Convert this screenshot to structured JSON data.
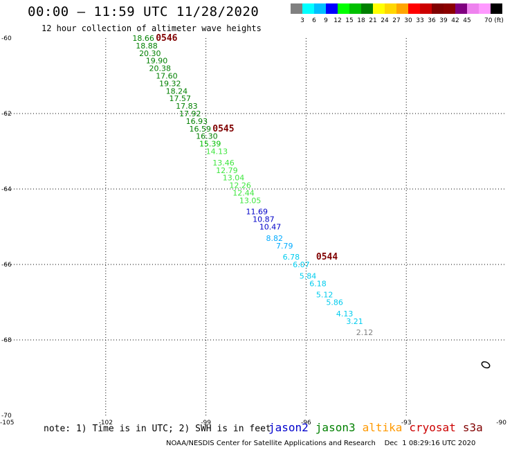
{
  "title": "00:00 – 11:59 UTC 11/28/2020",
  "subtitle": "12 hour collection of altimeter wave heights",
  "colorbar": {
    "colors": [
      "#808080",
      "#00ffff",
      "#00bfff",
      "#0000ff",
      "#00ff00",
      "#00c000",
      "#008000",
      "#ffff00",
      "#ffd700",
      "#ffa500",
      "#ff0000",
      "#cc0000",
      "#800000",
      "#8b0000",
      "#800080",
      "#ee82ee",
      "#ff99ff",
      "#000000"
    ],
    "labels": [
      "3",
      "6",
      "9",
      "12",
      "15",
      "18",
      "21",
      "24",
      "27",
      "30",
      "33",
      "36",
      "39",
      "42",
      "45",
      "70 (ft)"
    ]
  },
  "axes": {
    "lon_labels": [
      "-105",
      "-102",
      "-99",
      "-96",
      "-93",
      "-90"
    ],
    "lon_values": [
      -105,
      -102,
      -99,
      -96,
      -93,
      -90
    ],
    "lat_labels": [
      "-60",
      "-62",
      "-64",
      "-66",
      "-68",
      "-70"
    ],
    "lat_values": [
      -60,
      -62,
      -64,
      -66,
      -68,
      -70
    ]
  },
  "passes": [
    {
      "label": "0546",
      "lon": -100.5,
      "lat": -60.0
    },
    {
      "label": "0545",
      "lon": -98.8,
      "lat": -62.4
    },
    {
      "label": "0544",
      "lon": -95.7,
      "lat": -65.8
    }
  ],
  "swh": [
    {
      "v": "18.66",
      "lon": -101.2,
      "lat": -60.0,
      "c": "#008000"
    },
    {
      "v": "18.88",
      "lon": -101.1,
      "lat": -60.2,
      "c": "#008000"
    },
    {
      "v": "20.30",
      "lon": -101.0,
      "lat": -60.4,
      "c": "#008000"
    },
    {
      "v": "19.90",
      "lon": -100.8,
      "lat": -60.6,
      "c": "#008000"
    },
    {
      "v": "20.38",
      "lon": -100.7,
      "lat": -60.8,
      "c": "#008000"
    },
    {
      "v": "17.60",
      "lon": -100.5,
      "lat": -61.0,
      "c": "#008000"
    },
    {
      "v": "19.32",
      "lon": -100.4,
      "lat": -61.2,
      "c": "#008000"
    },
    {
      "v": "18.24",
      "lon": -100.2,
      "lat": -61.4,
      "c": "#008000"
    },
    {
      "v": "17.57",
      "lon": -100.1,
      "lat": -61.6,
      "c": "#008000"
    },
    {
      "v": "17.83",
      "lon": -99.9,
      "lat": -61.8,
      "c": "#008000"
    },
    {
      "v": "17.92",
      "lon": -99.8,
      "lat": -62.0,
      "c": "#008000"
    },
    {
      "v": "16.93",
      "lon": -99.6,
      "lat": -62.2,
      "c": "#008000"
    },
    {
      "v": "16.59",
      "lon": -99.5,
      "lat": -62.4,
      "c": "#008000"
    },
    {
      "v": "16.30",
      "lon": -99.3,
      "lat": -62.6,
      "c": "#008000"
    },
    {
      "v": "15.39",
      "lon": -99.2,
      "lat": -62.8,
      "c": "#00c000"
    },
    {
      "v": "14.13",
      "lon": -99.0,
      "lat": -63.0,
      "c": "#3ee63e"
    },
    {
      "v": "13.46",
      "lon": -98.8,
      "lat": -63.3,
      "c": "#3ee63e"
    },
    {
      "v": "12.79",
      "lon": -98.7,
      "lat": -63.5,
      "c": "#3ee63e"
    },
    {
      "v": "13.04",
      "lon": -98.5,
      "lat": -63.7,
      "c": "#3ee63e"
    },
    {
      "v": "12.26",
      "lon": -98.3,
      "lat": -63.9,
      "c": "#3ee63e"
    },
    {
      "v": "12.44",
      "lon": -98.2,
      "lat": -64.1,
      "c": "#3ee63e"
    },
    {
      "v": "13.05",
      "lon": -98.0,
      "lat": -64.3,
      "c": "#3ee63e"
    },
    {
      "v": "11.69",
      "lon": -97.8,
      "lat": -64.6,
      "c": "#0000c8"
    },
    {
      "v": "10.87",
      "lon": -97.6,
      "lat": -64.8,
      "c": "#0000c8"
    },
    {
      "v": "10.47",
      "lon": -97.4,
      "lat": -65.0,
      "c": "#0000c8"
    },
    {
      "v": "8.82",
      "lon": -97.2,
      "lat": -65.3,
      "c": "#00aaff"
    },
    {
      "v": "7.79",
      "lon": -96.9,
      "lat": -65.5,
      "c": "#00aaff"
    },
    {
      "v": "6.78",
      "lon": -96.7,
      "lat": -65.8,
      "c": "#00ccee"
    },
    {
      "v": "6.07",
      "lon": -96.4,
      "lat": -66.0,
      "c": "#00ccee"
    },
    {
      "v": "5.84",
      "lon": -96.2,
      "lat": -66.3,
      "c": "#00ccee"
    },
    {
      "v": "6.18",
      "lon": -95.9,
      "lat": -66.5,
      "c": "#00ccee"
    },
    {
      "v": "5.12",
      "lon": -95.7,
      "lat": -66.8,
      "c": "#00ccee"
    },
    {
      "v": "5.86",
      "lon": -95.4,
      "lat": -67.0,
      "c": "#00ccee"
    },
    {
      "v": "4.13",
      "lon": -95.1,
      "lat": -67.3,
      "c": "#00ccee"
    },
    {
      "v": "3.21",
      "lon": -94.8,
      "lat": -67.5,
      "c": "#00ccee"
    },
    {
      "v": "2.12",
      "lon": -94.5,
      "lat": -67.8,
      "c": "#808080"
    }
  ],
  "note": "note: 1) Time is in UTC; 2) SWH is in feet",
  "legend": [
    {
      "name": "jason2",
      "color": "#0000cc"
    },
    {
      "name": "jason3",
      "color": "#008000"
    },
    {
      "name": "altika",
      "color": "#ff9900"
    },
    {
      "name": "cryosat",
      "color": "#cc0000"
    },
    {
      "name": "s3a",
      "color": "#800000"
    }
  ],
  "footer": "NOAA/NESDIS Center for Satellite Applications and Research    Dec  1 08:29:16 UTC 2020"
}
